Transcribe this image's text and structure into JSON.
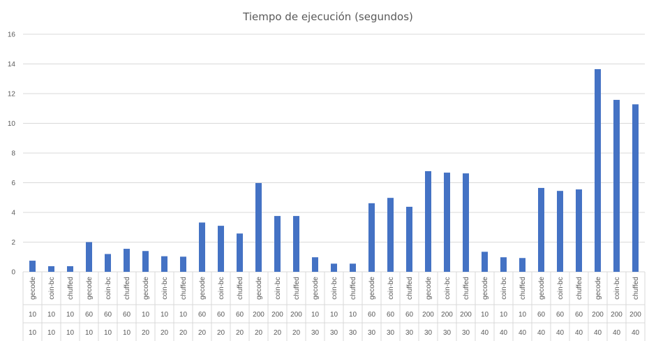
{
  "chart_data": {
    "type": "bar",
    "title": "Tiempo de ejecución (segundos)",
    "xlabel": "",
    "ylabel": "",
    "ylim": [
      0,
      16
    ],
    "yticks": [
      0,
      2,
      4,
      6,
      8,
      10,
      12,
      14,
      16
    ],
    "grid": true,
    "legend": "none",
    "bar_color": "#4472c4",
    "categories": [
      [
        "gecode",
        "10",
        "10"
      ],
      [
        "coin-bc",
        "10",
        "10"
      ],
      [
        "chuffed",
        "10",
        "10"
      ],
      [
        "gecode",
        "60",
        "10"
      ],
      [
        "coin-bc",
        "60",
        "10"
      ],
      [
        "chuffed",
        "60",
        "10"
      ],
      [
        "gecode",
        "10",
        "20"
      ],
      [
        "coin-bc",
        "10",
        "20"
      ],
      [
        "chuffed",
        "10",
        "20"
      ],
      [
        "gecode",
        "60",
        "20"
      ],
      [
        "coin-bc",
        "60",
        "20"
      ],
      [
        "chuffed",
        "60",
        "20"
      ],
      [
        "gecode",
        "200",
        "20"
      ],
      [
        "coin-bc",
        "200",
        "20"
      ],
      [
        "chuffed",
        "200",
        "20"
      ],
      [
        "gecode",
        "10",
        "30"
      ],
      [
        "coin-bc",
        "10",
        "30"
      ],
      [
        "chuffed",
        "10",
        "30"
      ],
      [
        "gecode",
        "60",
        "30"
      ],
      [
        "coin-bc",
        "60",
        "30"
      ],
      [
        "chuffed",
        "60",
        "30"
      ],
      [
        "gecode",
        "200",
        "30"
      ],
      [
        "coin-bc",
        "200",
        "30"
      ],
      [
        "chuffed",
        "200",
        "30"
      ],
      [
        "gecode",
        "10",
        "40"
      ],
      [
        "coin-bc",
        "10",
        "40"
      ],
      [
        "chuffed",
        "10",
        "40"
      ],
      [
        "gecode",
        "60",
        "40"
      ],
      [
        "coin-bc",
        "60",
        "40"
      ],
      [
        "chuffed",
        "60",
        "40"
      ],
      [
        "gecode",
        "200",
        "40"
      ],
      [
        "coin-bc",
        "200",
        "40"
      ],
      [
        "chuffed",
        "200",
        "40"
      ]
    ],
    "values": [
      0.75,
      0.38,
      0.38,
      2.0,
      1.2,
      1.55,
      1.4,
      1.05,
      1.02,
      3.32,
      3.1,
      2.58,
      5.98,
      3.76,
      3.76,
      0.98,
      0.55,
      0.55,
      4.62,
      4.98,
      4.38,
      6.78,
      6.68,
      6.63,
      1.35,
      0.98,
      0.93,
      5.65,
      5.45,
      5.55,
      13.65,
      11.58,
      11.28
    ]
  }
}
